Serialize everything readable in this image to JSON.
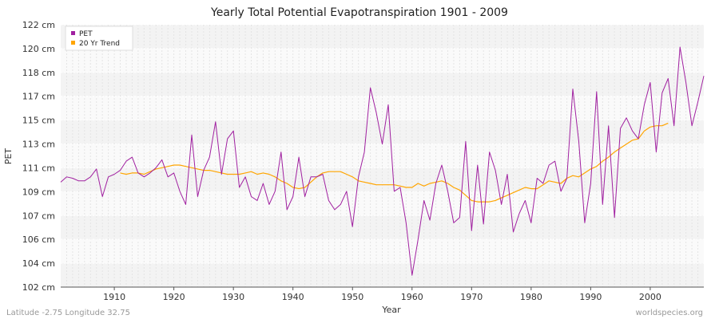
{
  "chart_data": {
    "type": "line",
    "title": "Yearly Total Potential Evapotranspiration 1901 - 2009",
    "xlabel": "Year",
    "ylabel": "PET",
    "xlim": [
      1901,
      2009
    ],
    "ylim": [
      102,
      122
    ],
    "x_ticks": [
      1910,
      1920,
      1930,
      1940,
      1950,
      1960,
      1970,
      1980,
      1990,
      2000
    ],
    "y_ticks": [
      "102 cm",
      "104 cm",
      "106 cm",
      "107 cm",
      "109 cm",
      "111 cm",
      "113 cm",
      "115 cm",
      "117 cm",
      "118 cm",
      "120 cm",
      "122 cm"
    ],
    "legend_position": "top-left",
    "series": [
      {
        "name": "PET",
        "color": "#a020a0",
        "x_start": 1901,
        "values": [
          110.0,
          110.4,
          110.3,
          110.1,
          110.1,
          110.4,
          111.0,
          108.9,
          110.4,
          110.6,
          110.9,
          111.6,
          111.9,
          110.7,
          110.4,
          110.7,
          111.1,
          111.7,
          110.4,
          110.7,
          109.3,
          108.3,
          113.6,
          108.9,
          110.9,
          111.9,
          114.6,
          110.6,
          113.3,
          113.9,
          109.6,
          110.4,
          108.9,
          108.6,
          109.9,
          108.3,
          109.3,
          112.3,
          107.9,
          108.9,
          111.9,
          108.9,
          110.4,
          110.4,
          110.6,
          108.6,
          107.9,
          108.3,
          109.3,
          106.6,
          110.4,
          112.3,
          117.2,
          115.3,
          112.9,
          115.9,
          109.3,
          109.6,
          106.9,
          102.9,
          105.6,
          108.6,
          107.1,
          109.9,
          111.3,
          109.3,
          106.9,
          107.3,
          113.1,
          106.3,
          111.3,
          106.8,
          112.3,
          110.9,
          108.3,
          110.6,
          106.2,
          107.6,
          108.6,
          106.9,
          110.3,
          109.9,
          111.3,
          111.6,
          109.3,
          110.3,
          117.1,
          113.1,
          106.9,
          109.9,
          116.9,
          108.3,
          114.3,
          107.3,
          114.1,
          114.9,
          113.9,
          113.3,
          115.9,
          117.6,
          112.3,
          116.8,
          117.9,
          114.3,
          120.3,
          117.6,
          114.3,
          116.1,
          118.1
        ]
      },
      {
        "name": "20 Yr Trend",
        "color": "#ffa500",
        "x_start": 1911,
        "values": [
          110.7,
          110.6,
          110.7,
          110.7,
          110.6,
          110.8,
          111.0,
          111.1,
          111.2,
          111.3,
          111.3,
          111.2,
          111.1,
          111.0,
          110.9,
          110.9,
          110.8,
          110.7,
          110.6,
          110.6,
          110.6,
          110.7,
          110.8,
          110.6,
          110.7,
          110.6,
          110.4,
          110.1,
          109.9,
          109.6,
          109.5,
          109.6,
          110.0,
          110.4,
          110.7,
          110.8,
          110.8,
          110.8,
          110.6,
          110.4,
          110.1,
          110.0,
          109.9,
          109.8,
          109.8,
          109.8,
          109.8,
          109.7,
          109.6,
          109.6,
          109.9,
          109.7,
          109.9,
          110.0,
          110.1,
          109.9,
          109.6,
          109.4,
          109.0,
          108.6,
          108.5,
          108.5,
          108.5,
          108.6,
          108.8,
          109.0,
          109.2,
          109.4,
          109.6,
          109.5,
          109.5,
          109.8,
          110.1,
          110.0,
          109.9,
          110.3,
          110.5,
          110.4,
          110.7,
          111.0,
          111.2,
          111.6,
          111.9,
          112.3,
          112.6,
          112.9,
          113.2,
          113.3,
          113.9,
          114.2,
          114.3,
          114.3,
          114.5
        ]
      }
    ]
  },
  "footer": {
    "left": "Latitude -2.75 Longitude 32.75",
    "right": "worldspecies.org"
  }
}
